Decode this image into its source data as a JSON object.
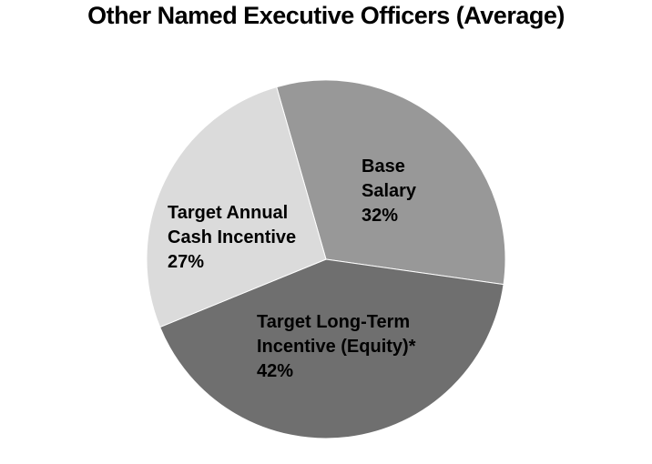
{
  "chart_data": {
    "type": "pie",
    "title": "Other Named Executive Officers (Average)",
    "start_angle_deg": -16,
    "direction": "clockwise",
    "legend_position": "none",
    "labels_inside": true,
    "background_color": "#ffffff",
    "separator_color": "#ffffff",
    "slices": [
      {
        "label": "Base Salary",
        "label_lines": "Base\nSalary",
        "value": 32,
        "display_value": "32%",
        "color": "#989898",
        "text_color": "#000000"
      },
      {
        "label": "Target Long-Term Incentive (Equity)*",
        "label_lines": "Target Long-Term\nIncentive (Equity)*",
        "value": 42,
        "display_value": "42%",
        "color": "#6F6F6F",
        "text_color": "#000000"
      },
      {
        "label": "Target Annual Cash Incentive",
        "label_lines": "Target Annual\nCash Incentive",
        "value": 27,
        "display_value": "27%",
        "color": "#DBDBDB",
        "text_color": "#000000"
      }
    ]
  }
}
